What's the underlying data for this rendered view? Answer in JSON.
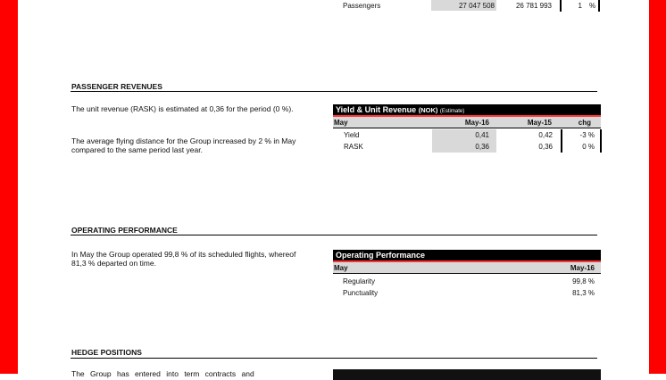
{
  "colors": {
    "accent": "#ff0000",
    "header": "#000000",
    "shade": "#d9d9d9"
  },
  "traffic": {
    "label": "Passengers",
    "current": "27 047 508",
    "previous": "26 781 993",
    "chg": "1",
    "unit": "%"
  },
  "passenger_revenues": {
    "heading": "PASSENGER REVENUES",
    "paragraphs": [
      "The unit revenue (RASK) is estimated at 0,36 for the period (0 %).",
      "The average flying distance for the Group increased by 2 % in May compared to the same period last year."
    ],
    "table": {
      "title": "Yield & Unit Revenue",
      "title_unit": "(NOK)",
      "title_note": "(Estimate)",
      "columns": [
        "May",
        "May-16",
        "May-15",
        "chg"
      ],
      "rows": [
        {
          "label": "Yield",
          "cur": "0,41",
          "prev": "0,42",
          "chg": "-3 %"
        },
        {
          "label": "RASK",
          "cur": "0,36",
          "prev": "0,36",
          "chg": "0 %"
        }
      ]
    }
  },
  "operating_performance": {
    "heading": "OPERATING PERFORMANCE",
    "paragraph": "In May the Group operated 99,8 % of its scheduled flights, whereof 81,3 % departed on time.",
    "table": {
      "title": "Operating Performance",
      "columns": [
        "May",
        "May-16"
      ],
      "rows": [
        {
          "label": "Regularity",
          "value": "99,8 %"
        },
        {
          "label": "Punctuality",
          "value": "81,3 %"
        }
      ]
    }
  },
  "hedge_positions": {
    "heading": "HEDGE POSITIONS",
    "paragraph": "The Group has entered into term contracts and"
  }
}
